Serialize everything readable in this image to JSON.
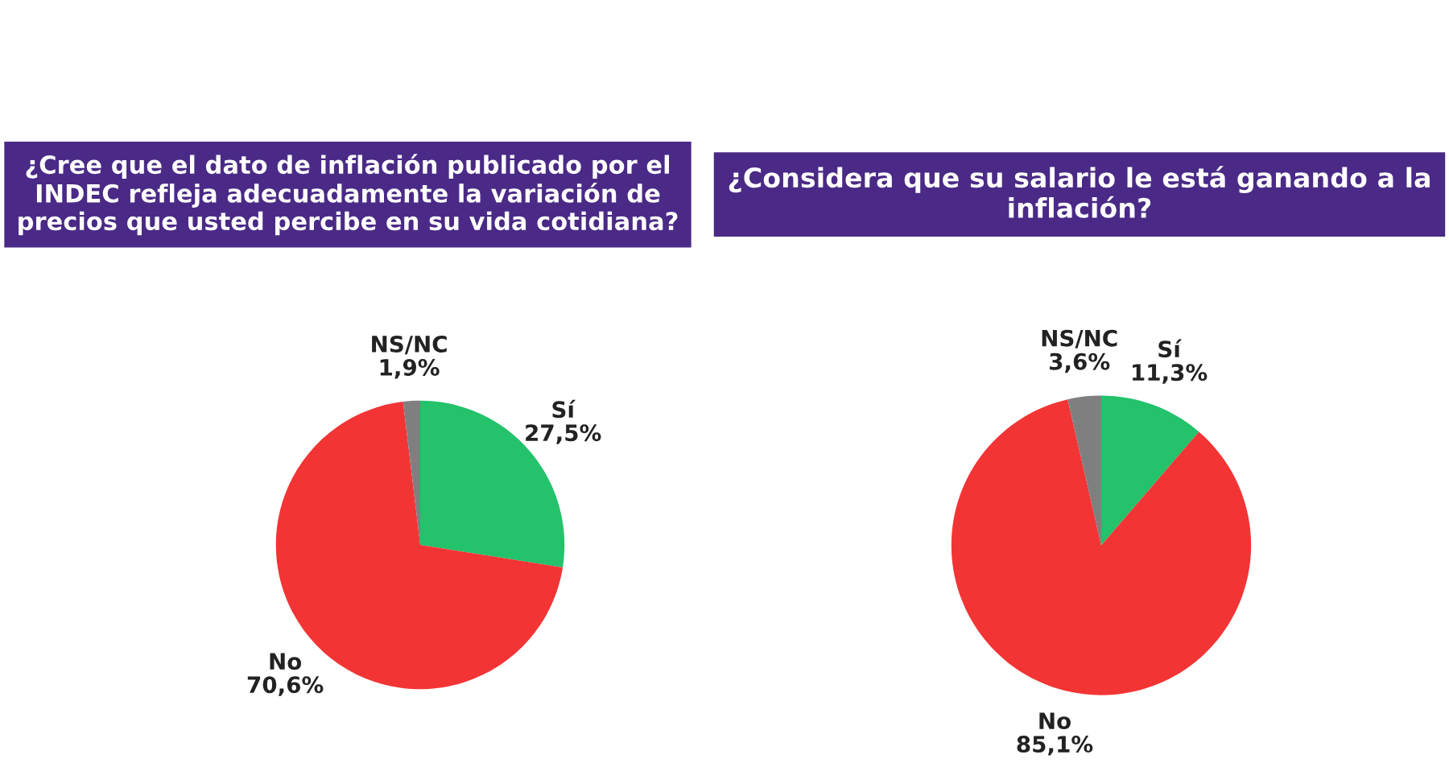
{
  "chart_data": [
    {
      "type": "pie",
      "title": "¿Cree que el dato de inflación publicado por el INDEC refleja adecuadamente la variación de precios que usted percibe en su vida cotidiana?",
      "categories": [
        "Sí",
        "No",
        "NS/NC"
      ],
      "values": [
        27.5,
        70.6,
        1.9
      ],
      "colors": [
        "#23c26b",
        "#f23434",
        "#7f7f7f"
      ],
      "value_labels": [
        "27,5%",
        "70,6%",
        "1,9%"
      ]
    },
    {
      "type": "pie",
      "title": "¿Considera que su salario le está ganando a la inflación?",
      "categories": [
        "Sí",
        "No",
        "NS/NC"
      ],
      "values": [
        11.3,
        85.1,
        3.6
      ],
      "colors": [
        "#23c26b",
        "#f23434",
        "#7f7f7f"
      ],
      "value_labels": [
        "11,3%",
        "85,1%",
        "3,6%"
      ]
    }
  ]
}
